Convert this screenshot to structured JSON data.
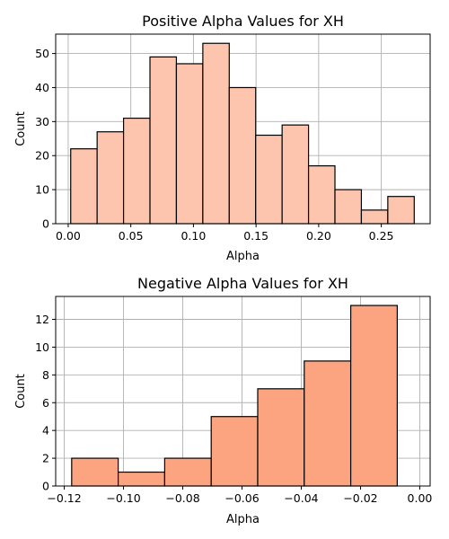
{
  "chart_data": [
    {
      "type": "bar",
      "title": "Positive Alpha Values for XH",
      "xlabel": "Alpha",
      "ylabel": "Count",
      "bar_color": "#fdc5ad",
      "bin_edges": [
        0.002,
        0.0231,
        0.0442,
        0.0653,
        0.0864,
        0.1075,
        0.1286,
        0.1497,
        0.1708,
        0.1919,
        0.213,
        0.2341,
        0.2552,
        0.2763
      ],
      "values": [
        22,
        27,
        31,
        49,
        47,
        53,
        40,
        26,
        29,
        17,
        10,
        4,
        8
      ],
      "xlim": [
        -0.01,
        0.289
      ],
      "ylim": [
        0,
        55.7
      ],
      "xticks": [
        0.0,
        0.05,
        0.1,
        0.15,
        0.2,
        0.25
      ],
      "xtick_labels": [
        "0.00",
        "0.05",
        "0.10",
        "0.15",
        "0.20",
        "0.25"
      ],
      "yticks": [
        0,
        10,
        20,
        30,
        40,
        50
      ],
      "ytick_labels": [
        "0",
        "10",
        "20",
        "30",
        "40",
        "50"
      ],
      "grid": true
    },
    {
      "type": "bar",
      "title": "Negative Alpha Values for XH",
      "xlabel": "Alpha",
      "ylabel": "Count",
      "bar_color": "#fca47f",
      "bin_edges": [
        -0.1175,
        -0.1018,
        -0.0861,
        -0.0704,
        -0.0547,
        -0.039,
        -0.0233,
        -0.0076
      ],
      "values": [
        2,
        1,
        2,
        5,
        7,
        9,
        13
      ],
      "xlim": [
        -0.1229,
        0.0035
      ],
      "ylim": [
        0,
        13.65
      ],
      "xticks": [
        -0.12,
        -0.1,
        -0.08,
        -0.06,
        -0.04,
        -0.02,
        0.0
      ],
      "xtick_labels": [
        "−0.12",
        "−0.10",
        "−0.08",
        "−0.06",
        "−0.04",
        "−0.02",
        "0.00"
      ],
      "yticks": [
        0,
        2,
        4,
        6,
        8,
        10,
        12
      ],
      "ytick_labels": [
        "0",
        "2",
        "4",
        "6",
        "8",
        "10",
        "12"
      ],
      "grid": true
    }
  ]
}
